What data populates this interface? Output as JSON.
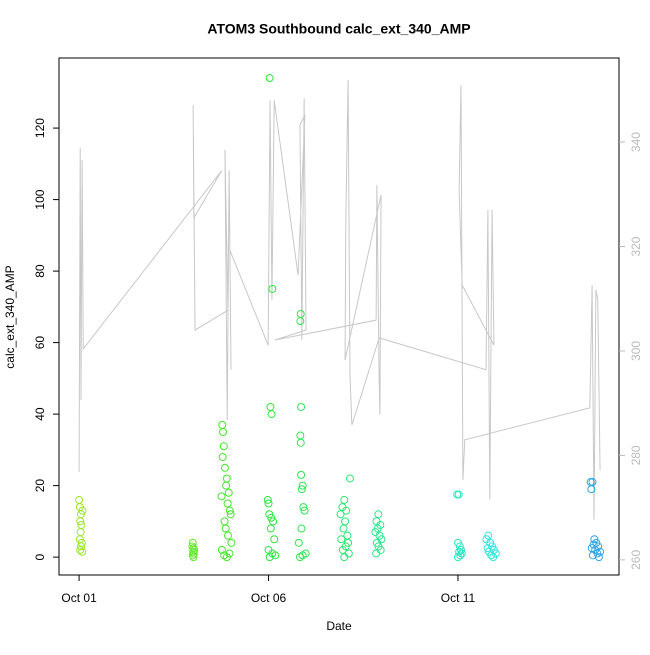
{
  "chart_data": {
    "type": "scatter",
    "title": "ATOM3 Southbound calc_ext_340_AMP",
    "x_label": "Date",
    "y_label": "calc_ext_340_AMP",
    "xlim": [
      -0.53,
      14.25
    ],
    "xticks": [
      {
        "value": 0,
        "label": "Oct 01"
      },
      {
        "value": 5,
        "label": "Oct 06"
      },
      {
        "value": 10,
        "label": "Oct 11"
      }
    ],
    "ylim": [
      -5,
      139.6
    ],
    "yticks": [
      0,
      20,
      40,
      60,
      80,
      100,
      120
    ],
    "y2lim": [
      257.1,
      356.1
    ],
    "y2ticks": [
      260,
      280,
      300,
      320,
      340
    ],
    "series": [
      {
        "color": "#9be62e",
        "x": [
          0,
          0.02,
          0.05,
          0.03,
          0.06,
          0.04,
          0.02,
          0.07,
          0.05,
          0.03,
          0.08,
          0.09
        ],
        "values": [
          16,
          14,
          12,
          10,
          9,
          7,
          5,
          4,
          3,
          2,
          1.5,
          13
        ]
      },
      {
        "color": "#66e62e",
        "x": [
          3.0,
          3.02,
          3.01,
          3.03,
          3.0,
          3.02,
          2.99,
          3.04
        ],
        "values": [
          4,
          2.5,
          1.5,
          1,
          0.5,
          0,
          3,
          2
        ]
      },
      {
        "color": "#48e62e",
        "x": [
          3.78,
          3.8,
          3.82,
          3.79,
          3.85,
          3.9,
          3.88,
          3.95,
          3.76,
          3.92,
          3.98,
          4.0,
          3.84,
          3.87,
          3.93,
          4.02,
          3.77,
          3.97,
          3.83,
          3.9
        ],
        "values": [
          37,
          35,
          31,
          28,
          25,
          22,
          20,
          18,
          17,
          15,
          13,
          12,
          10,
          8,
          6,
          4,
          2,
          1,
          0.5,
          0
        ]
      },
      {
        "color": "#2ee63c",
        "x": [
          5.03,
          5.1,
          5.05,
          5.08,
          4.98,
          5.0,
          5.02,
          5.07,
          5.12,
          5.06,
          5.15,
          5.0,
          5.1,
          5.18,
          5.03
        ],
        "values": [
          134,
          75,
          42,
          40,
          16,
          15,
          12,
          11,
          10,
          8,
          5,
          2,
          1,
          0.5,
          0
        ]
      },
      {
        "color": "#2ee654",
        "x": [
          5.85,
          5.84,
          5.86,
          5.84,
          5.85,
          5.86,
          5.9,
          5.88,
          5.92,
          5.95,
          5.87,
          5.8,
          5.98,
          5.9,
          5.83
        ],
        "values": [
          68,
          66,
          42,
          34,
          32,
          23,
          20,
          19,
          14,
          13,
          8,
          4,
          1,
          0.5,
          0
        ]
      },
      {
        "color": "#2ee674",
        "x": [
          7.15,
          7.0,
          6.95,
          7.05,
          6.9,
          7.02,
          6.98,
          7.08,
          6.92,
          7.1,
          7.04,
          6.96,
          7.12,
          7.0
        ],
        "values": [
          22,
          16,
          14,
          13,
          12,
          10,
          8,
          6,
          5,
          4,
          3,
          2,
          1,
          0
        ]
      },
      {
        "color": "#2ee68c",
        "x": [
          7.9,
          7.85,
          7.95,
          7.88,
          7.82,
          7.93,
          7.98,
          7.86,
          7.9,
          7.96,
          7.84
        ],
        "values": [
          12,
          10,
          9,
          8,
          7,
          6,
          5,
          4,
          3,
          2,
          1
        ]
      },
      {
        "color": "#2ee6c4",
        "x": [
          9.98,
          10.02,
          10.0,
          10.05,
          10.08,
          10.03,
          10.1,
          10.06,
          10.0
        ],
        "values": [
          17.5,
          17.5,
          4,
          3,
          2,
          1.5,
          1,
          0.5,
          0
        ]
      },
      {
        "color": "#2ee6de",
        "x": [
          10.8,
          10.75,
          10.85,
          10.9,
          10.78,
          10.95,
          10.82,
          11.0,
          10.88,
          10.93
        ],
        "values": [
          6,
          5,
          4,
          3,
          2.5,
          2,
          1.5,
          1,
          0.5,
          0
        ]
      },
      {
        "color": "#2ea6e6",
        "x": [
          13.55,
          13.5,
          13.52,
          13.6,
          13.65,
          13.58,
          13.7,
          13.53,
          13.62,
          13.75,
          13.68,
          13.56,
          13.72
        ],
        "values": [
          21,
          21,
          19,
          5,
          4,
          3.5,
          3,
          2.5,
          2,
          1.5,
          1,
          0.5,
          0
        ]
      },
      {
        "color": "#c8c8c8",
        "axis": "y2",
        "x": [
          0,
          0.03,
          0.05,
          0.08,
          0.11,
          3.77,
          3.03,
          3.01,
          3.06,
          3.93,
          3.85,
          3.91,
          3.96,
          4.01,
          3.98,
          4.99,
          5.04,
          5.09,
          5.15,
          5.78,
          5.96,
          5.83,
          5.88,
          5.94,
          5.99,
          5.17,
          7.84,
          7.86,
          7.92,
          7.94,
          7.97,
          7.02,
          7.04,
          7.1,
          7.15,
          7.2,
          7.92,
          10.74,
          10.79,
          10.84,
          10.9,
          10.95,
          10.11,
          10.03,
          10.08,
          10.13,
          10.18,
          13.48,
          13.54,
          13.59,
          13.64,
          13.69,
          13.75
        ],
        "values": [
          276.8,
          338.9,
          290.6,
          336.6,
          300.4,
          334.6,
          325.5,
          347.1,
          304.0,
          307.8,
          338.5,
          286.8,
          334.6,
          296.4,
          319.3,
          301.1,
          348.0,
          309.8,
          348.0,
          314.5,
          345.2,
          343.3,
          302.1,
          348.4,
          304.0,
          302.1,
          305.9,
          331.8,
          294.4,
          287.8,
          329.9,
          298.3,
          325.1,
          351.9,
          295.4,
          285.8,
          302.5,
          296.4,
          327.0,
          271.5,
          327.0,
          301.1,
          312.6,
          330.8,
          350.9,
          275.3,
          283.0,
          289.1,
          312.6,
          267.7,
          311.7,
          309.8,
          277.2
        ]
      }
    ]
  }
}
